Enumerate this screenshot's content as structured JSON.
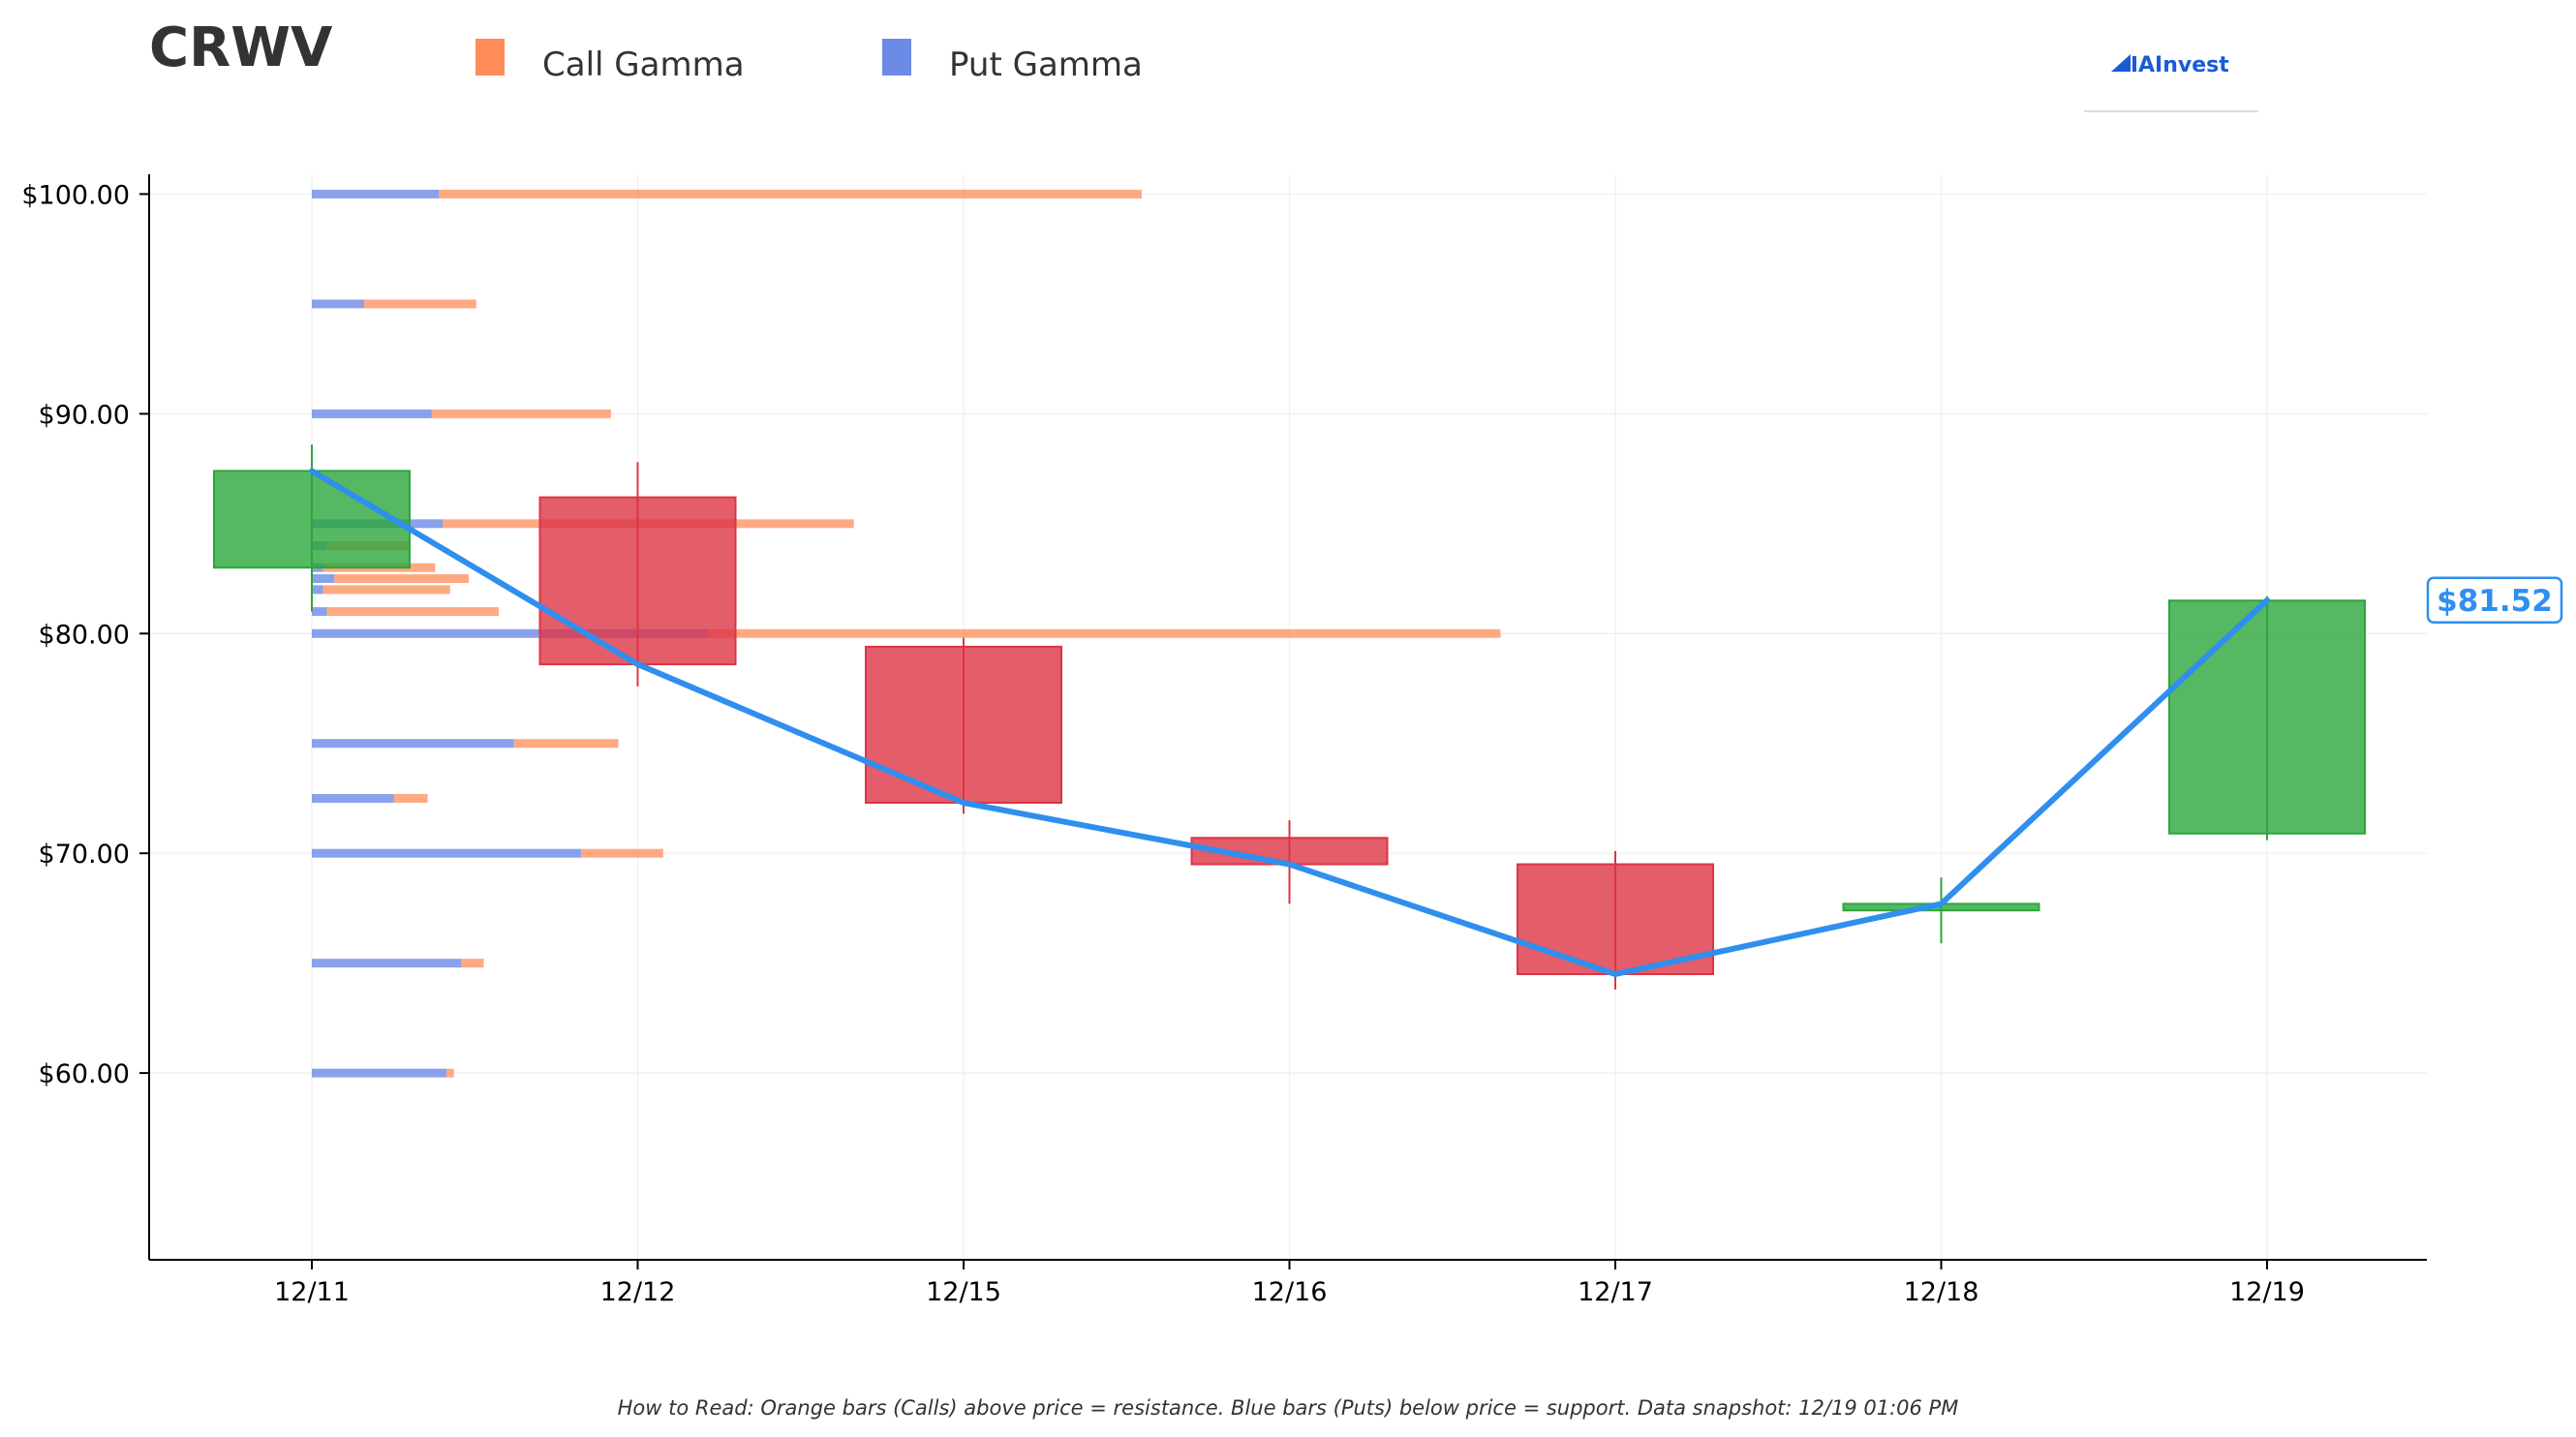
{
  "chart_data": {
    "type": "candlestick",
    "ticker": "CRWV",
    "legend": [
      {
        "label": "Call Gamma",
        "color": "#ff8c5a"
      },
      {
        "label": "Put Gamma",
        "color": "#6b8be6"
      }
    ],
    "logo_text": "AInvest",
    "categories": [
      "12/11",
      "12/12",
      "12/15",
      "12/16",
      "12/17",
      "12/18",
      "12/19"
    ],
    "ohlc": [
      {
        "open": 83.0,
        "high": 88.6,
        "low": 81.0,
        "close": 87.4
      },
      {
        "open": 86.2,
        "high": 87.8,
        "low": 77.6,
        "close": 78.6
      },
      {
        "open": 79.4,
        "high": 79.8,
        "low": 71.8,
        "close": 72.3
      },
      {
        "open": 70.7,
        "high": 71.5,
        "low": 67.7,
        "close": 69.5
      },
      {
        "open": 69.5,
        "high": 70.1,
        "low": 63.8,
        "close": 64.5
      },
      {
        "open": 67.4,
        "high": 68.9,
        "low": 65.9,
        "close": 67.7
      },
      {
        "open": 70.9,
        "high": 81.7,
        "low": 70.6,
        "close": 81.5
      }
    ],
    "close_line": [
      87.4,
      78.6,
      72.3,
      69.5,
      64.5,
      67.7,
      81.52
    ],
    "last_price_label": "$81.52",
    "gamma_levels": [
      {
        "strike": 100,
        "put": 1.7,
        "call": 9.4
      },
      {
        "strike": 95,
        "put": 0.7,
        "call": 1.5
      },
      {
        "strike": 90,
        "put": 1.6,
        "call": 2.4
      },
      {
        "strike": 85,
        "put": 1.75,
        "call": 5.5
      },
      {
        "strike": 84,
        "put": 0.2,
        "call": 1.1
      },
      {
        "strike": 83,
        "put": 0.15,
        "call": 1.5
      },
      {
        "strike": 82.5,
        "put": 0.3,
        "call": 1.8
      },
      {
        "strike": 82,
        "put": 0.15,
        "call": 1.7
      },
      {
        "strike": 81,
        "put": 0.2,
        "call": 2.3
      },
      {
        "strike": 80,
        "put": 5.3,
        "call": 10.6
      },
      {
        "strike": 75,
        "put": 2.7,
        "call": 1.4
      },
      {
        "strike": 72.5,
        "put": 1.1,
        "call": 0.45
      },
      {
        "strike": 70,
        "put": 3.6,
        "call": 1.1
      },
      {
        "strike": 65,
        "put": 2.0,
        "call": 0.3
      },
      {
        "strike": 60,
        "put": 1.8,
        "call": 0.1
      }
    ],
    "y_ticks": [
      {
        "value": 100,
        "label": "$100.00"
      },
      {
        "value": 90,
        "label": "$90.00"
      },
      {
        "value": 80,
        "label": "$80.00"
      },
      {
        "value": 70,
        "label": "$70.00"
      },
      {
        "value": 60,
        "label": "$60.00"
      }
    ],
    "ylim": [
      51.5,
      100.9
    ],
    "grid": true,
    "colors": {
      "up": "#2ca63c",
      "down": "#dc3545",
      "line": "#2f8fee",
      "call": "#ff8c5a",
      "put": "#6b8be6"
    },
    "footer_note": "How to Read: Orange bars (Calls) above price = resistance. Blue bars (Puts) below price = support. Data snapshot: 12/19 01:06 PM"
  }
}
